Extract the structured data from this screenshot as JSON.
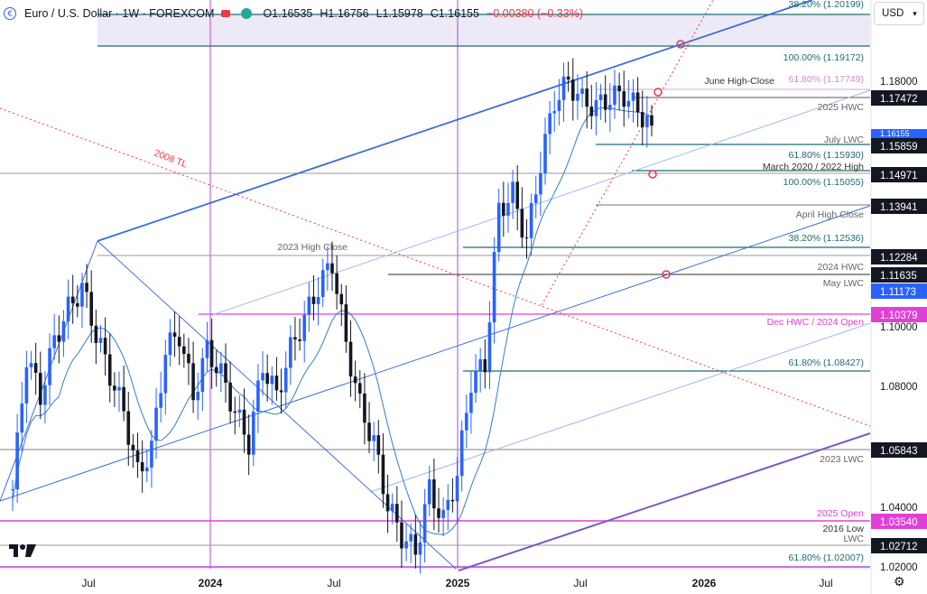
{
  "header": {
    "symbol_title": "Euro / U.S. Dollar · 1W · FOREXCOM",
    "ohlc_open": "O1.16535",
    "ohlc_high": "H1.16756",
    "ohlc_low": "L1.15978",
    "ohlc_close": "C1.16155",
    "ohlc_change": "−0.00380 (−0.33%)"
  },
  "currency_selector": {
    "label": "USD"
  },
  "colors": {
    "up": "#2962ff",
    "down": "#131722",
    "trend": "#3d6fd6",
    "fib": "#1f6b74",
    "magenta": "#e040d6",
    "red_dotted": "#f23645",
    "purple": "#7e57c2"
  },
  "chart_data": {
    "type": "candlestick",
    "timeframe": "1W",
    "ylim": [
      1.0195,
      1.2024
    ],
    "x_ticks": [
      "Jul",
      "2024",
      "Jul",
      "2025",
      "Jul",
      "2026",
      "Jul"
    ],
    "y_ticks": [
      "1.18000",
      "1.10000",
      "1.08000",
      "1.04000",
      "1.02000"
    ],
    "levels": [
      {
        "label": "38.20% (1.20199)",
        "value": 1.20199,
        "kind": "fib"
      },
      {
        "label": "100.00% (1.19172)",
        "value": 1.19172,
        "kind": "fib"
      },
      {
        "label": "61.80% (1.17749)",
        "value": 1.17749,
        "kind": "fib-pink"
      },
      {
        "label": "June High-Close",
        "value": 1.1775,
        "kind": "text"
      },
      {
        "label": "2025 HWC",
        "value": 1.1685,
        "kind": "text"
      },
      {
        "label": "July LWC",
        "value": 1.1615,
        "kind": "text"
      },
      {
        "label": "61.80% (1.15930)",
        "value": 1.1593,
        "kind": "fib"
      },
      {
        "label": "March 2020 / 2022 High",
        "value": 1.1535,
        "kind": "text"
      },
      {
        "label": "100.00% (1.15055)",
        "value": 1.15055,
        "kind": "fib"
      },
      {
        "label": "April High Close",
        "value": 1.1365,
        "kind": "text"
      },
      {
        "label": "38.20% (1.12536)",
        "value": 1.12536,
        "kind": "fib"
      },
      {
        "label": "2023 High Close",
        "value": 1.1265,
        "kind": "text"
      },
      {
        "label": "2024 HWC",
        "value": 1.1187,
        "kind": "text"
      },
      {
        "label": "May LWC",
        "value": 1.1145,
        "kind": "text"
      },
      {
        "label": "Dec HWC / 2024 Open",
        "value": 1.1035,
        "kind": "text-magenta"
      },
      {
        "label": "61.80% (1.08427)",
        "value": 1.08427,
        "kind": "fib"
      },
      {
        "label": "2023 LWC",
        "value": 1.0545,
        "kind": "text"
      },
      {
        "label": "2025 Open",
        "value": 1.0374,
        "kind": "text-magenta"
      },
      {
        "label": "2016 Low",
        "value": 1.0324,
        "kind": "text"
      },
      {
        "label": "LWC",
        "value": 1.0298,
        "kind": "text"
      },
      {
        "label": "61.80% (1.02007)",
        "value": 1.02007,
        "kind": "fib"
      },
      {
        "label": "2008 TL",
        "value": 1.146,
        "kind": "text-red"
      }
    ],
    "price_tags": [
      {
        "label": "1.17472",
        "value": 1.17472,
        "color": "#131722"
      },
      {
        "label": "1.16155",
        "value": 1.16155,
        "color": "#2962ff"
      },
      {
        "label": "1.15859",
        "value": 1.15859,
        "color": "#131722"
      },
      {
        "label": "1.14971",
        "value": 1.14971,
        "color": "#131722"
      },
      {
        "label": "1.13941",
        "value": 1.13941,
        "color": "#131722"
      },
      {
        "label": "1.12284",
        "value": 1.12284,
        "color": "#131722"
      },
      {
        "label": "1.11635",
        "value": 1.11635,
        "color": "#131722"
      },
      {
        "label": "1.11173",
        "value": 1.11173,
        "color": "#2962ff"
      },
      {
        "label": "1.10379",
        "value": 1.10379,
        "color": "#e040d6"
      },
      {
        "label": "1.05843",
        "value": 1.05843,
        "color": "#131722"
      },
      {
        "label": "1.03540",
        "value": 1.0354,
        "color": "#e040d6"
      },
      {
        "label": "1.02712",
        "value": 1.02712,
        "color": "#131722"
      }
    ],
    "candles_summary": [
      1.045,
      1.088,
      1.075,
      1.093,
      1.103,
      1.11,
      1.095,
      1.082,
      1.07,
      1.05,
      1.058,
      1.09,
      1.095,
      1.075,
      1.09,
      1.082,
      1.07,
      1.06,
      1.085,
      1.075,
      1.09,
      1.1,
      1.11,
      1.118,
      1.092,
      1.072,
      1.06,
      1.04,
      1.03,
      1.025,
      1.045,
      1.035,
      1.05,
      1.08,
      1.085,
      1.135,
      1.14,
      1.125,
      1.15,
      1.17,
      1.176,
      1.17,
      1.168,
      1.171,
      1.172,
      1.167,
      1.162
    ]
  }
}
